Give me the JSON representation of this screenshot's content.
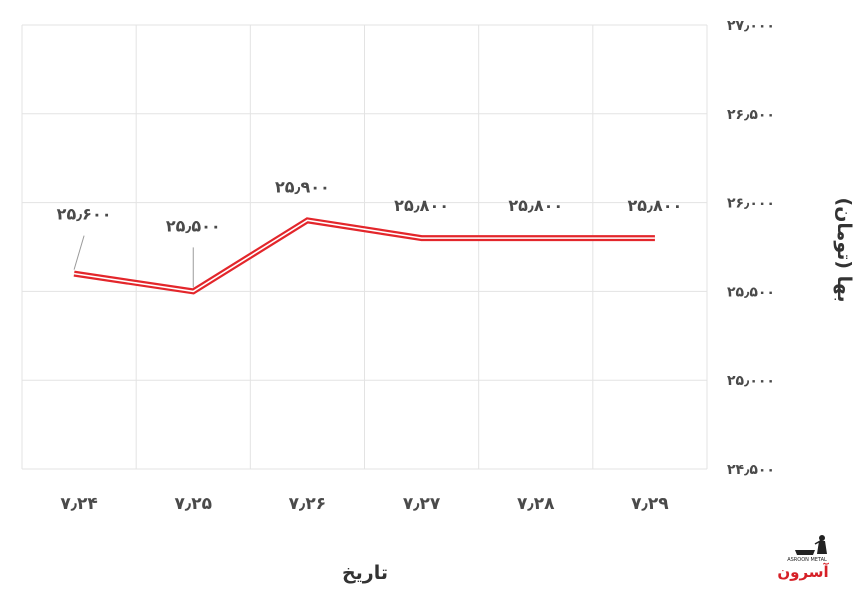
{
  "chart_data": {
    "type": "line",
    "categories": [
      "۷٫۲۴",
      "۷٫۲۵",
      "۷٫۲۶",
      "۷٫۲۷",
      "۷٫۲۸",
      "۷٫۲۹"
    ],
    "series": [
      {
        "values": [
          25600,
          25500,
          25900,
          25800,
          25800,
          25800
        ],
        "labels": [
          "۲۵٫۶۰۰",
          "۲۵٫۵۰۰",
          "۲۵٫۹۰۰",
          "۲۵٫۸۰۰",
          "۲۵٫۸۰۰",
          "۲۵٫۸۰۰"
        ],
        "color": "#e3262b"
      }
    ],
    "ylim": [
      24500,
      27000
    ],
    "yticks": [
      27000,
      26500,
      26000,
      25500,
      25000,
      24500
    ],
    "ytick_labels": [
      "۲۷٫۰۰۰",
      "۲۶٫۵۰۰",
      "۲۶٫۰۰۰",
      "۲۵٫۵۰۰",
      "۲۵٫۰۰۰",
      "۲۴٫۵۰۰"
    ],
    "xlabel": "تاریخ",
    "ylabel": "بها (تومان)",
    "grid": true,
    "colors": {
      "grid": "#e3e3e3",
      "line": "#e3262b",
      "leader": "#9a9a9a"
    }
  },
  "logo": {
    "name": "آسرون",
    "tagline": "ASROON METAL",
    "colors": {
      "primary": "#d62027",
      "secondary": "#222222"
    }
  }
}
